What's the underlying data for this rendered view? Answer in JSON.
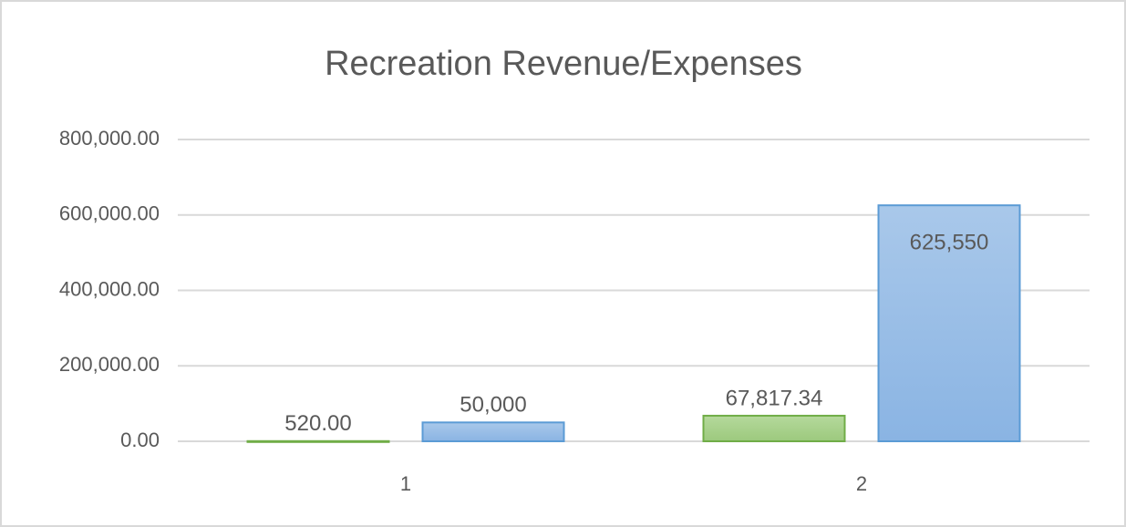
{
  "chart_data": {
    "type": "bar",
    "title": "Recreation  Revenue/Expenses",
    "categories": [
      "1",
      "2"
    ],
    "series": [
      {
        "color": "#70ad47",
        "values": [
          520,
          67817.34
        ],
        "value_labels": [
          "520.00",
          "67,817.34"
        ]
      },
      {
        "color": "#5b9bd5",
        "values": [
          50000,
          625550
        ],
        "value_labels": [
          "50,000",
          "625,550"
        ]
      }
    ],
    "ylim": [
      0,
      800000
    ],
    "yticks": [
      {
        "value": 0,
        "label": "0.00"
      },
      {
        "value": 200000,
        "label": "200,000.00"
      },
      {
        "value": 400000,
        "label": "400,000.00"
      },
      {
        "value": 600000,
        "label": "600,000.00"
      },
      {
        "value": 800000,
        "label": "800,000.00"
      }
    ],
    "grid": true
  }
}
